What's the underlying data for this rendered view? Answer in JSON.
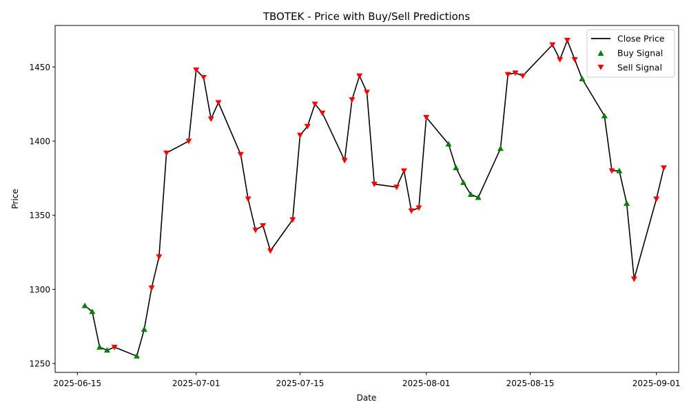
{
  "chart_data": {
    "type": "line",
    "title": "TBOTEK - Price with Buy/Sell Predictions",
    "xlabel": "Date",
    "ylabel": "Price",
    "xlim": [
      "2025-06-12",
      "2025-09-04"
    ],
    "ylim": [
      1244,
      1478
    ],
    "x_ticks": [
      "2025-06-15",
      "2025-07-01",
      "2025-07-15",
      "2025-08-01",
      "2025-08-15",
      "2025-09-01"
    ],
    "y_ticks": [
      1250,
      1300,
      1350,
      1400,
      1450
    ],
    "grid": false,
    "legend_position": "top-right",
    "colors": {
      "close": "#000000",
      "buy": "#008000",
      "sell": "#ff0000"
    },
    "series": [
      {
        "name": "Close Price",
        "kind": "line",
        "points": [
          [
            "2025-06-16",
            1289
          ],
          [
            "2025-06-17",
            1285
          ],
          [
            "2025-06-18",
            1261
          ],
          [
            "2025-06-19",
            1259
          ],
          [
            "2025-06-20",
            1261
          ],
          [
            "2025-06-23",
            1255
          ],
          [
            "2025-06-24",
            1273
          ],
          [
            "2025-06-25",
            1301
          ],
          [
            "2025-06-26",
            1322
          ],
          [
            "2025-06-27",
            1392
          ],
          [
            "2025-06-30",
            1400
          ],
          [
            "2025-07-01",
            1448
          ],
          [
            "2025-07-02",
            1443
          ],
          [
            "2025-07-03",
            1415
          ],
          [
            "2025-07-04",
            1426
          ],
          [
            "2025-07-07",
            1391
          ],
          [
            "2025-07-08",
            1361
          ],
          [
            "2025-07-09",
            1340
          ],
          [
            "2025-07-10",
            1343
          ],
          [
            "2025-07-11",
            1326
          ],
          [
            "2025-07-14",
            1347
          ],
          [
            "2025-07-15",
            1404
          ],
          [
            "2025-07-16",
            1410
          ],
          [
            "2025-07-17",
            1425
          ],
          [
            "2025-07-18",
            1419
          ],
          [
            "2025-07-21",
            1387
          ],
          [
            "2025-07-22",
            1428
          ],
          [
            "2025-07-23",
            1444
          ],
          [
            "2025-07-24",
            1433
          ],
          [
            "2025-07-25",
            1371
          ],
          [
            "2025-07-28",
            1369
          ],
          [
            "2025-07-29",
            1380
          ],
          [
            "2025-07-30",
            1353
          ],
          [
            "2025-07-31",
            1355
          ],
          [
            "2025-08-01",
            1416
          ],
          [
            "2025-08-04",
            1398
          ],
          [
            "2025-08-05",
            1382
          ],
          [
            "2025-08-06",
            1372
          ],
          [
            "2025-08-07",
            1364
          ],
          [
            "2025-08-08",
            1362
          ],
          [
            "2025-08-11",
            1395
          ],
          [
            "2025-08-12",
            1445
          ],
          [
            "2025-08-13",
            1446
          ],
          [
            "2025-08-14",
            1444
          ],
          [
            "2025-08-18",
            1465
          ],
          [
            "2025-08-19",
            1455
          ],
          [
            "2025-08-20",
            1468
          ],
          [
            "2025-08-21",
            1455
          ],
          [
            "2025-08-22",
            1442
          ],
          [
            "2025-08-25",
            1417
          ],
          [
            "2025-08-26",
            1380
          ],
          [
            "2025-08-27",
            1380
          ],
          [
            "2025-08-28",
            1358
          ],
          [
            "2025-08-29",
            1307
          ],
          [
            "2025-09-01",
            1361
          ],
          [
            "2025-09-02",
            1382
          ]
        ]
      },
      {
        "name": "Buy Signal",
        "kind": "scatter",
        "marker": "triangle-up",
        "points": [
          [
            "2025-06-16",
            1289
          ],
          [
            "2025-06-17",
            1285
          ],
          [
            "2025-06-18",
            1261
          ],
          [
            "2025-06-19",
            1259
          ],
          [
            "2025-06-23",
            1255
          ],
          [
            "2025-06-24",
            1273
          ],
          [
            "2025-08-04",
            1398
          ],
          [
            "2025-08-05",
            1382
          ],
          [
            "2025-08-06",
            1372
          ],
          [
            "2025-08-07",
            1364
          ],
          [
            "2025-08-08",
            1362
          ],
          [
            "2025-08-11",
            1395
          ],
          [
            "2025-08-22",
            1442
          ],
          [
            "2025-08-25",
            1417
          ],
          [
            "2025-08-27",
            1380
          ],
          [
            "2025-08-28",
            1358
          ]
        ]
      },
      {
        "name": "Sell Signal",
        "kind": "scatter",
        "marker": "triangle-down",
        "points": [
          [
            "2025-06-20",
            1261
          ],
          [
            "2025-06-25",
            1301
          ],
          [
            "2025-06-26",
            1322
          ],
          [
            "2025-06-27",
            1392
          ],
          [
            "2025-06-30",
            1400
          ],
          [
            "2025-07-01",
            1448
          ],
          [
            "2025-07-02",
            1443
          ],
          [
            "2025-07-03",
            1415
          ],
          [
            "2025-07-04",
            1426
          ],
          [
            "2025-07-07",
            1391
          ],
          [
            "2025-07-08",
            1361
          ],
          [
            "2025-07-09",
            1340
          ],
          [
            "2025-07-10",
            1343
          ],
          [
            "2025-07-11",
            1326
          ],
          [
            "2025-07-14",
            1347
          ],
          [
            "2025-07-15",
            1404
          ],
          [
            "2025-07-16",
            1410
          ],
          [
            "2025-07-17",
            1425
          ],
          [
            "2025-07-18",
            1419
          ],
          [
            "2025-07-21",
            1387
          ],
          [
            "2025-07-22",
            1428
          ],
          [
            "2025-07-23",
            1444
          ],
          [
            "2025-07-24",
            1433
          ],
          [
            "2025-07-25",
            1371
          ],
          [
            "2025-07-28",
            1369
          ],
          [
            "2025-07-29",
            1380
          ],
          [
            "2025-07-30",
            1353
          ],
          [
            "2025-07-31",
            1355
          ],
          [
            "2025-08-01",
            1416
          ],
          [
            "2025-08-12",
            1445
          ],
          [
            "2025-08-13",
            1446
          ],
          [
            "2025-08-14",
            1444
          ],
          [
            "2025-08-18",
            1465
          ],
          [
            "2025-08-19",
            1455
          ],
          [
            "2025-08-20",
            1468
          ],
          [
            "2025-08-21",
            1455
          ],
          [
            "2025-08-26",
            1380
          ],
          [
            "2025-08-29",
            1307
          ],
          [
            "2025-09-01",
            1361
          ],
          [
            "2025-09-02",
            1382
          ]
        ]
      }
    ]
  }
}
